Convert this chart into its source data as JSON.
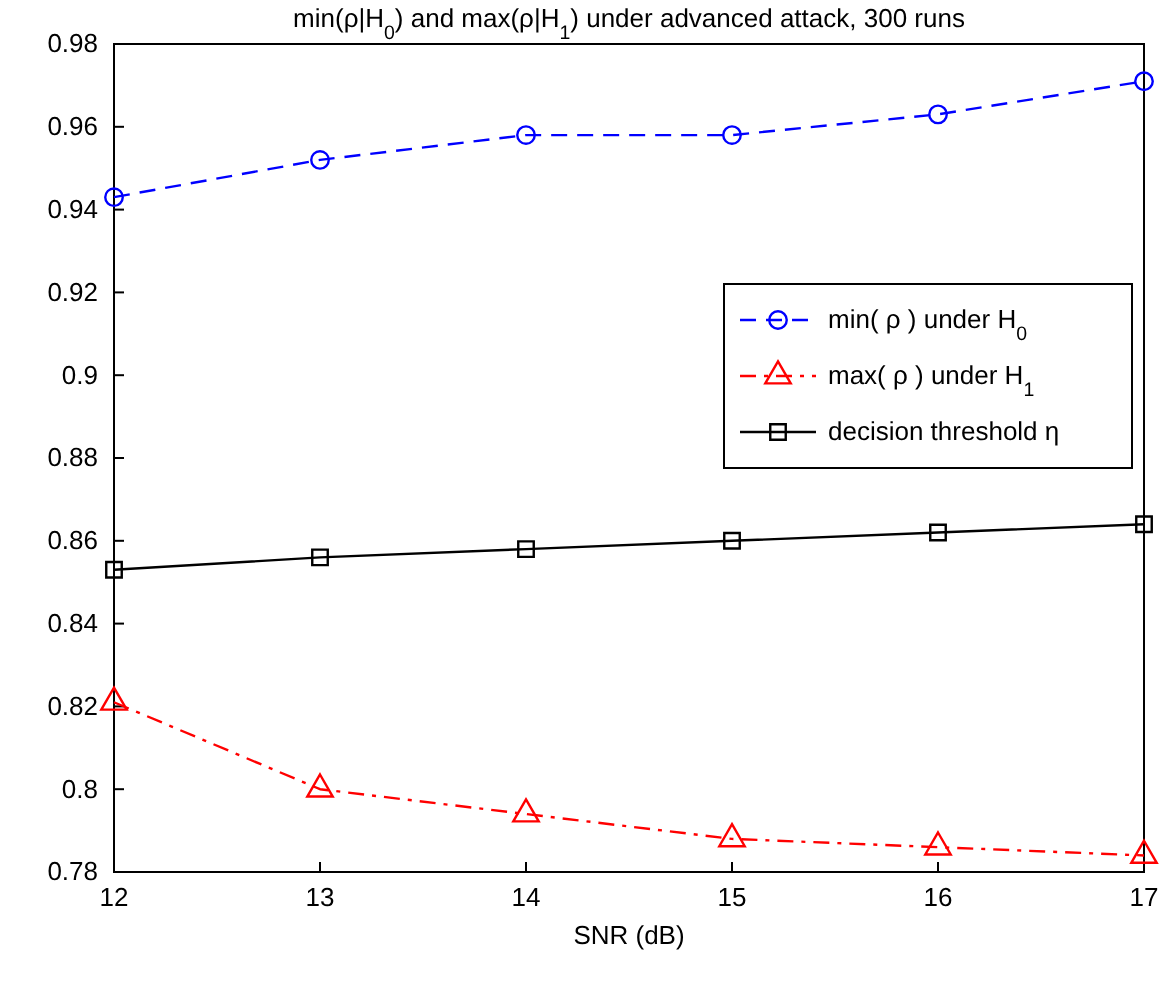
{
  "chart_data": {
    "type": "line",
    "title": "min(ρ|H$_{0}$) and max(ρ|H$_{1}$) under advanced attack, 300 runs",
    "xlabel": "SNR (dB)",
    "x": [
      12,
      13,
      14,
      15,
      16,
      17
    ],
    "series": [
      {
        "name": "min( ρ ) under H$_{0}$",
        "color": "#0000ff",
        "marker": "circle",
        "line_style": "dashed",
        "values": [
          0.943,
          0.952,
          0.958,
          0.958,
          0.963,
          0.971
        ]
      },
      {
        "name": "max( ρ ) under H$_{1}$",
        "color": "#ff0000",
        "marker": "triangle",
        "line_style": "dashdot",
        "values": [
          0.821,
          0.8,
          0.794,
          0.788,
          0.786,
          0.784
        ]
      },
      {
        "name": "decision threshold η",
        "color": "#000000",
        "marker": "square",
        "line_style": "solid",
        "values": [
          0.853,
          0.856,
          0.858,
          0.86,
          0.862,
          0.864
        ]
      }
    ],
    "xlim": [
      12,
      17
    ],
    "xticks": [
      12,
      13,
      14,
      15,
      16,
      17
    ],
    "ylim": [
      0.78,
      0.98
    ],
    "yticks": [
      0.78,
      0.8,
      0.82,
      0.84,
      0.86,
      0.88,
      0.9,
      0.92,
      0.94,
      0.96,
      0.98
    ],
    "grid": false,
    "legend": "right"
  }
}
